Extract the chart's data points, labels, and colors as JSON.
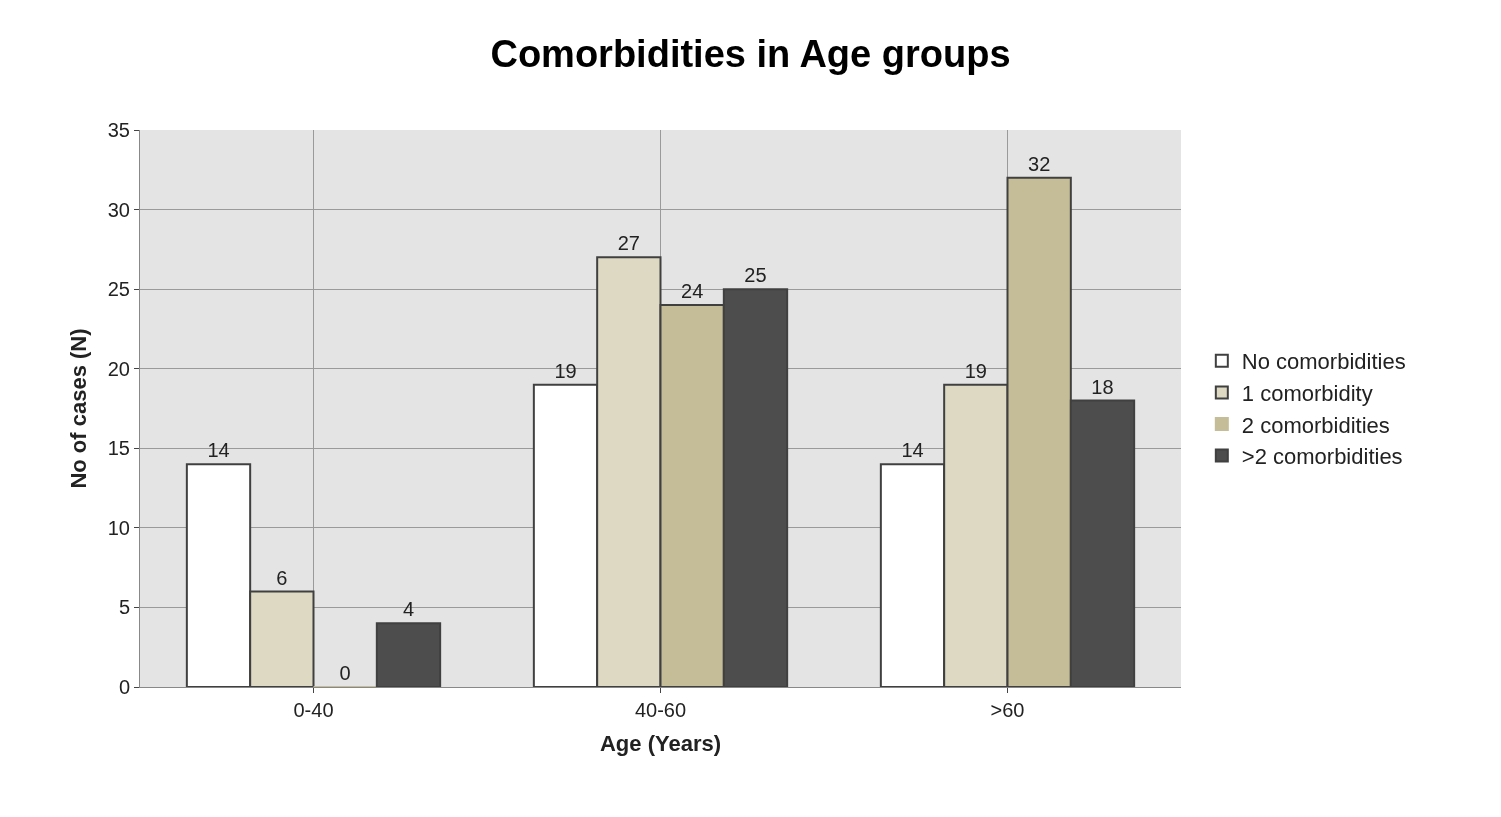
{
  "chart_data": {
    "type": "bar",
    "title": "Comorbidities in Age groups",
    "xlabel": "Age (Years)",
    "ylabel": "No of cases (N)",
    "categories": [
      "0-40",
      "40-60",
      ">60"
    ],
    "series": [
      {
        "name": "No comorbidities",
        "color": "#ffffff",
        "values": [
          14,
          19,
          14
        ]
      },
      {
        "name": "1 comorbidity",
        "color": "#ddd9c3",
        "values": [
          6,
          27,
          19
        ]
      },
      {
        "name": "2 comorbidities",
        "color": "#c4bd97",
        "values": [
          0,
          24,
          32
        ]
      },
      {
        "name": ">2 comorbidities",
        "color": "#4d4d4d",
        "values": [
          4,
          25,
          18
        ]
      }
    ],
    "ylim": [
      0,
      35
    ],
    "yticks": [
      0,
      5,
      10,
      15,
      20,
      25,
      30,
      35
    ],
    "grid": true,
    "legend": "right",
    "data_labels": true
  }
}
